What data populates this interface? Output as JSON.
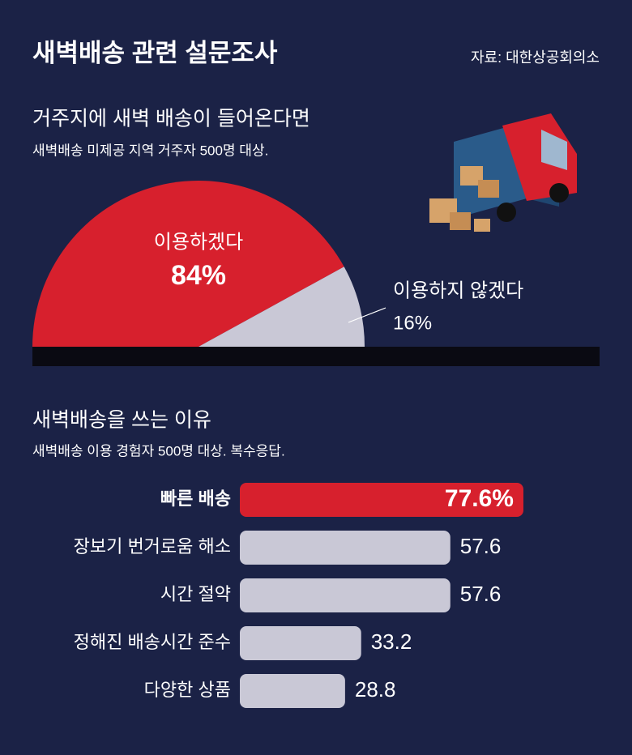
{
  "title": "새벽배송 관련 설문조사",
  "source": "자료: 대한상공회의소",
  "chart_data": [
    {
      "type": "half-pie",
      "title": "거주지에 새벽 배송이 들어온다면",
      "subtitle": "새벽배송 미제공 지역 거주자 500명 대상.",
      "categories": [
        "이용하겠다",
        "이용하지 않겠다"
      ],
      "values": [
        84,
        16
      ],
      "value_labels": [
        "84%",
        "16%"
      ],
      "colors": [
        "#d7202d",
        "#c9c8d6"
      ]
    },
    {
      "type": "bar",
      "title": "새벽배송을 쓰는 이유",
      "subtitle": "새벽배송 이용 경험자 500명 대상. 복수응답.",
      "categories": [
        "빠른 배송",
        "장보기 번거로움 해소",
        "시간 절약",
        "정해진 배송시간 준수",
        "다양한 상품"
      ],
      "values": [
        77.6,
        57.6,
        57.6,
        33.2,
        28.8
      ],
      "value_labels": [
        "77.6%",
        "57.6",
        "57.6",
        "33.2",
        "28.8"
      ],
      "colors": [
        "#d7202d",
        "#c9c8d6",
        "#c9c8d6",
        "#c9c8d6",
        "#c9c8d6"
      ]
    }
  ]
}
